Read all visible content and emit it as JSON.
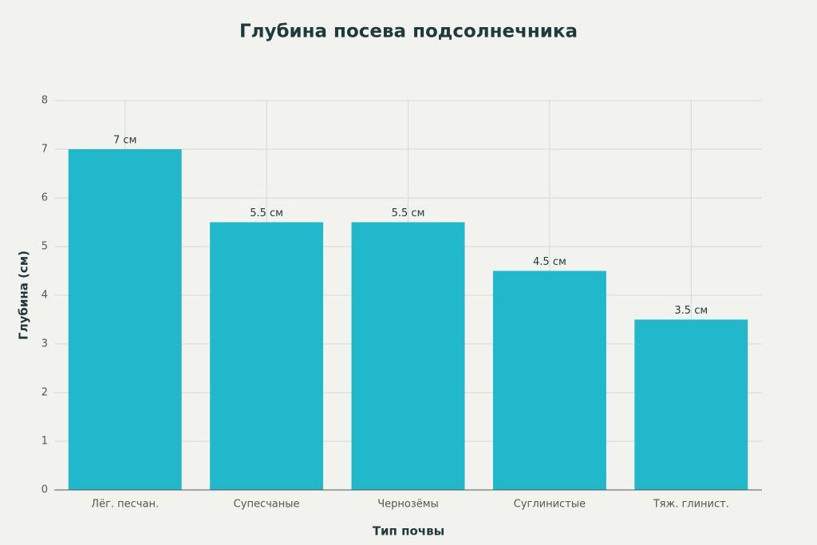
{
  "chart_data": {
    "type": "bar",
    "title": "Глубина посева подсолнечника",
    "x_label": "Тип почвы",
    "y_label": "Глубина (см)",
    "categories": [
      "Лёг. песчан.",
      "Супесчаные",
      "Чернозёмы",
      "Суглинистые",
      "Тяж. глинист."
    ],
    "values": [
      7,
      5.5,
      5.5,
      4.5,
      3.5
    ],
    "value_labels": [
      "7 см",
      "5.5 см",
      "5.5 см",
      "4.5 см",
      "3.5 см"
    ],
    "color": "#22b8cc",
    "ylim": [
      0,
      8
    ],
    "yticks": [
      0,
      1,
      2,
      3,
      4,
      5,
      6,
      7,
      8
    ],
    "grid": true
  }
}
